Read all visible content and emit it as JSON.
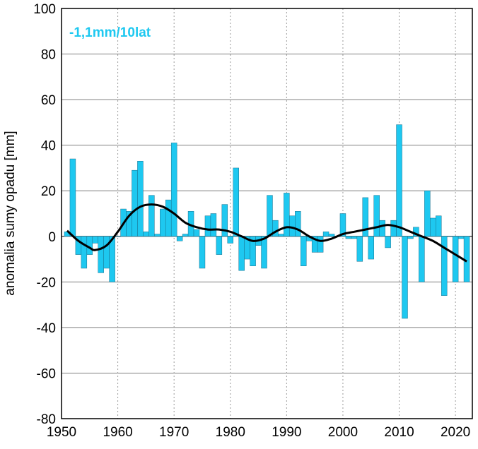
{
  "chart_data": {
    "type": "bar",
    "title": "",
    "annotation": "-1,1mm/10lat",
    "xlabel": "",
    "ylabel": "anomalia sumy opadu [mm]",
    "xlim": [
      1950,
      2023
    ],
    "ylim": [
      -80,
      100
    ],
    "xticks": [
      1950,
      1960,
      1970,
      1980,
      1990,
      2000,
      2010,
      2020
    ],
    "yticks": [
      -80,
      -60,
      -40,
      -20,
      0,
      20,
      40,
      60,
      80,
      100
    ],
    "grid": {
      "y": "solid",
      "x": "dotted"
    },
    "colors": {
      "bars": "#1ec8f0",
      "bar_edge": "#1a6f8c",
      "smooth": "#000000",
      "annotation": "#1ec8f0",
      "grid": "#7f7f7f"
    },
    "years": [
      1951,
      1952,
      1953,
      1954,
      1955,
      1956,
      1957,
      1958,
      1959,
      1960,
      1961,
      1962,
      1963,
      1964,
      1965,
      1966,
      1967,
      1968,
      1969,
      1970,
      1971,
      1972,
      1973,
      1974,
      1975,
      1976,
      1977,
      1978,
      1979,
      1980,
      1981,
      1982,
      1983,
      1984,
      1985,
      1986,
      1987,
      1988,
      1989,
      1990,
      1991,
      1992,
      1993,
      1994,
      1995,
      1996,
      1997,
      1998,
      1999,
      2000,
      2001,
      2002,
      2003,
      2004,
      2005,
      2006,
      2007,
      2008,
      2009,
      2010,
      2011,
      2012,
      2013,
      2014,
      2015,
      2016,
      2017,
      2018,
      2019,
      2020,
      2021,
      2022
    ],
    "values": [
      2,
      34,
      -8,
      -14,
      -8,
      -3,
      -16,
      -14,
      -20,
      0,
      12,
      11,
      29,
      33,
      2,
      18,
      1,
      12,
      16,
      41,
      -2,
      1,
      11,
      3,
      -14,
      9,
      10,
      -8,
      14,
      -3,
      30,
      -15,
      -10,
      -13,
      -4,
      -14,
      18,
      7,
      1,
      19,
      9,
      11,
      -13,
      -2,
      -7,
      -7,
      2,
      1,
      0,
      10,
      -1,
      -1,
      -11,
      17,
      -10,
      18,
      7,
      -5,
      7,
      49,
      -36,
      -1,
      4,
      -20,
      20,
      8,
      9,
      -26,
      0,
      -20,
      -1,
      -20
    ],
    "smooth_line": {
      "x": [
        1951,
        1953,
        1955,
        1956,
        1958,
        1960,
        1962,
        1964,
        1966,
        1968,
        1970,
        1972,
        1974,
        1976,
        1978,
        1980,
        1982,
        1984,
        1986,
        1988,
        1990,
        1992,
        1994,
        1996,
        1998,
        2000,
        2002,
        2004,
        2006,
        2008,
        2010,
        2012,
        2014,
        2016,
        2018,
        2020,
        2022
      ],
      "y": [
        2.5,
        -2,
        -5,
        -6,
        -4,
        2,
        9,
        13,
        14,
        13,
        10,
        6,
        4,
        3,
        3,
        2,
        0,
        -2,
        -1,
        2,
        4,
        3,
        0,
        -2,
        -1,
        1,
        2,
        3,
        4,
        5,
        4,
        2,
        0,
        -2,
        -5,
        -8,
        -11
      ]
    }
  }
}
